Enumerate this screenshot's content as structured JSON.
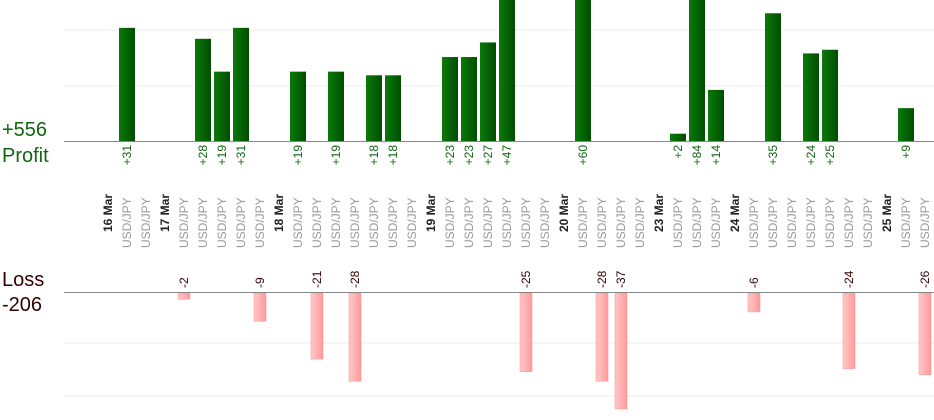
{
  "summary": {
    "profit_total": "+556",
    "profit_label": "Profit",
    "loss_label": "Loss",
    "loss_total": "-206"
  },
  "colors": {
    "profit_text": "#116611",
    "loss_text": "#330000",
    "profit_bar": "#006600",
    "loss_bar": "#ffb0b0",
    "axis": "#888888",
    "grid": "#eeeeee"
  },
  "chart_data": [
    {
      "type": "bar",
      "series": "profit",
      "bars": [
        {
          "slot": 1,
          "value": 31,
          "label": "+31"
        },
        {
          "slot": 5,
          "value": 28,
          "label": "+28"
        },
        {
          "slot": 6,
          "value": 19,
          "label": "+19"
        },
        {
          "slot": 7,
          "value": 31,
          "label": "+31"
        },
        {
          "slot": 10,
          "value": 19,
          "label": "+19"
        },
        {
          "slot": 12,
          "value": 19,
          "label": "+19"
        },
        {
          "slot": 14,
          "value": 18,
          "label": "+18"
        },
        {
          "slot": 15,
          "value": 18,
          "label": "+18"
        },
        {
          "slot": 18,
          "value": 23,
          "label": "+23"
        },
        {
          "slot": 19,
          "value": 23,
          "label": "+23"
        },
        {
          "slot": 20,
          "value": 27,
          "label": "+27"
        },
        {
          "slot": 21,
          "value": 47,
          "label": "+47"
        },
        {
          "slot": 25,
          "value": 60,
          "label": "+60"
        },
        {
          "slot": 30,
          "value": 2,
          "label": "+2"
        },
        {
          "slot": 31,
          "value": 84,
          "label": "+84"
        },
        {
          "slot": 32,
          "value": 14,
          "label": "+14"
        },
        {
          "slot": 35,
          "value": 35,
          "label": "+35"
        },
        {
          "slot": 37,
          "value": 24,
          "label": "+24"
        },
        {
          "slot": 38,
          "value": 25,
          "label": "+25"
        },
        {
          "slot": 42,
          "value": 9,
          "label": "+9"
        }
      ]
    },
    {
      "type": "bar",
      "series": "loss",
      "bars": [
        {
          "slot": 4,
          "value": -2,
          "label": "-2"
        },
        {
          "slot": 8,
          "value": -9,
          "label": "-9"
        },
        {
          "slot": 11,
          "value": -21,
          "label": "-21"
        },
        {
          "slot": 13,
          "value": -28,
          "label": "-28"
        },
        {
          "slot": 22,
          "value": -25,
          "label": "-25"
        },
        {
          "slot": 26,
          "value": -28,
          "label": "-28"
        },
        {
          "slot": 27,
          "value": -37,
          "label": "-37"
        },
        {
          "slot": 34,
          "value": -6,
          "label": "-6"
        },
        {
          "slot": 39,
          "value": -24,
          "label": "-24"
        },
        {
          "slot": 43,
          "value": -26,
          "label": "-26"
        }
      ]
    }
  ],
  "x_axis": {
    "dates": [
      {
        "slot": 0,
        "text": "16 Mar"
      },
      {
        "slot": 3,
        "text": "17 Mar"
      },
      {
        "slot": 9,
        "text": "18 Mar"
      },
      {
        "slot": 17,
        "text": "19 Mar"
      },
      {
        "slot": 24,
        "text": "20 Mar"
      },
      {
        "slot": 29,
        "text": "23 Mar"
      },
      {
        "slot": 33,
        "text": "24 Mar"
      },
      {
        "slot": 41,
        "text": "25 Mar"
      }
    ],
    "instrument_slots": [
      1,
      2,
      4,
      5,
      6,
      7,
      8,
      10,
      11,
      12,
      13,
      14,
      15,
      16,
      18,
      19,
      20,
      21,
      22,
      23,
      25,
      26,
      27,
      28,
      30,
      31,
      32,
      34,
      35,
      36,
      37,
      38,
      39,
      40,
      42,
      43
    ],
    "instrument": "USD/JPY"
  }
}
